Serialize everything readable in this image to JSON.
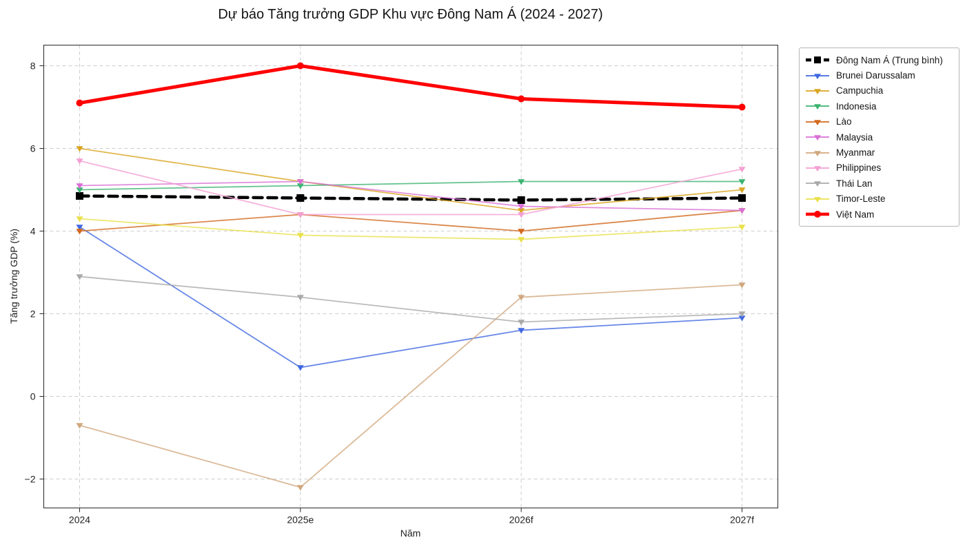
{
  "chart_data": {
    "type": "line",
    "title": "Dự báo Tăng trưởng GDP Khu vực Đông Nam Á (2024 - 2027)",
    "xlabel": "Năm",
    "ylabel": "Tăng trưởng GDP (%)",
    "categories": [
      "2024",
      "2025e",
      "2026f",
      "2027f"
    ],
    "y_ticks": [
      8,
      6,
      4,
      2,
      0,
      -2
    ],
    "y_tick_labels": [
      "8",
      "6",
      "4",
      "2",
      "0",
      "−2"
    ],
    "ylim": [
      -2.7,
      8.5
    ],
    "grid": true,
    "legend_position": "outside-right",
    "series": [
      {
        "name": "Đông Nam Á (Trung bình)",
        "color": "#000000",
        "marker": "square",
        "line": "dashed",
        "width": 4.5,
        "values": [
          4.85,
          4.8,
          4.75,
          4.8
        ]
      },
      {
        "name": "Brunei Darussalam",
        "color": "#4169E1",
        "marker": "triangle-down",
        "line": "solid",
        "width": 1.8,
        "values": [
          4.1,
          0.7,
          1.6,
          1.9
        ]
      },
      {
        "name": "Campuchia",
        "color": "#DAA520",
        "marker": "triangle-down",
        "line": "solid",
        "width": 1.8,
        "values": [
          6.0,
          5.2,
          4.5,
          5.0
        ]
      },
      {
        "name": "Indonesia",
        "color": "#3CB371",
        "marker": "triangle-down",
        "line": "solid",
        "width": 1.8,
        "values": [
          5.0,
          5.1,
          5.2,
          5.2
        ]
      },
      {
        "name": "Lào",
        "color": "#D2691E",
        "marker": "triangle-down",
        "line": "solid",
        "width": 1.8,
        "values": [
          4.0,
          4.4,
          4.0,
          4.5
        ]
      },
      {
        "name": "Malaysia",
        "color": "#DA70D6",
        "marker": "triangle-down",
        "line": "solid",
        "width": 1.8,
        "values": [
          5.1,
          5.2,
          4.6,
          4.5
        ]
      },
      {
        "name": "Myanmar",
        "color": "#D2A77E",
        "marker": "triangle-down",
        "line": "solid",
        "width": 1.8,
        "values": [
          -0.7,
          -2.2,
          2.4,
          2.7
        ]
      },
      {
        "name": "Philippines",
        "color": "#F49FD3",
        "marker": "triangle-down",
        "line": "solid",
        "width": 1.8,
        "values": [
          5.7,
          4.4,
          4.4,
          5.5
        ]
      },
      {
        "name": "Thái Lan",
        "color": "#A9A9A9",
        "marker": "triangle-down",
        "line": "solid",
        "width": 1.8,
        "values": [
          2.9,
          2.4,
          1.8,
          2.0
        ]
      },
      {
        "name": "Timor-Leste",
        "color": "#E9E14B",
        "marker": "triangle-down",
        "line": "solid",
        "width": 1.8,
        "values": [
          4.3,
          3.9,
          3.8,
          4.1
        ]
      },
      {
        "name": "Việt Nam",
        "color": "#FF0000",
        "marker": "circle",
        "line": "solid",
        "width": 5.0,
        "values": [
          7.1,
          8.0,
          7.2,
          7.0
        ]
      }
    ]
  }
}
